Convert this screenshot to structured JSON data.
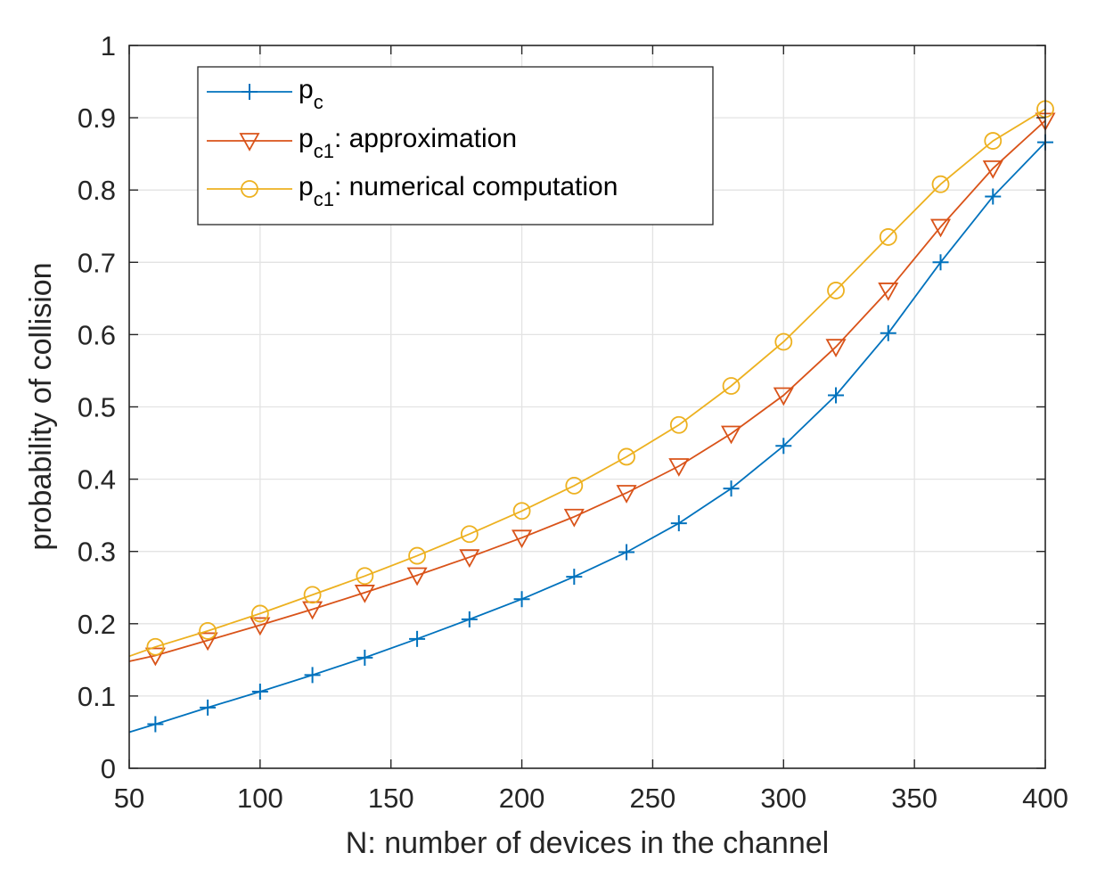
{
  "chart_data": {
    "type": "line",
    "title": "",
    "xlabel": "N: number of devices in the channel",
    "ylabel": "probability of collision",
    "xlim": [
      50,
      400
    ],
    "ylim": [
      0,
      1
    ],
    "xticks": [
      50,
      100,
      150,
      200,
      250,
      300,
      350,
      400
    ],
    "yticks": [
      0,
      0.1,
      0.2,
      0.3,
      0.4,
      0.5,
      0.6,
      0.7,
      0.8,
      0.9,
      1
    ],
    "xtick_labels": [
      "50",
      "100",
      "150",
      "200",
      "250",
      "300",
      "350",
      "400"
    ],
    "ytick_labels": [
      "0",
      "0.1",
      "0.2",
      "0.3",
      "0.4",
      "0.5",
      "0.6",
      "0.7",
      "0.8",
      "0.9",
      "1"
    ],
    "grid": true,
    "legend_position": "top-left",
    "series": [
      {
        "name": "p_c",
        "legend": {
          "main": "p",
          "sub": "c",
          "suffix": ""
        },
        "color": "#0072BD",
        "marker": "plus",
        "line": [
          [
            50,
            0.05
          ],
          [
            60,
            0.061
          ],
          [
            80,
            0.084
          ],
          [
            100,
            0.106
          ],
          [
            120,
            0.129
          ],
          [
            140,
            0.153
          ],
          [
            160,
            0.179
          ],
          [
            180,
            0.206
          ],
          [
            200,
            0.234
          ],
          [
            220,
            0.265
          ],
          [
            240,
            0.299
          ],
          [
            260,
            0.339
          ],
          [
            280,
            0.387
          ],
          [
            300,
            0.446
          ],
          [
            320,
            0.516
          ],
          [
            340,
            0.602
          ],
          [
            360,
            0.7
          ],
          [
            380,
            0.791
          ],
          [
            400,
            0.866
          ]
        ],
        "x": [
          60,
          80,
          100,
          120,
          140,
          160,
          180,
          200,
          220,
          240,
          260,
          280,
          300,
          320,
          340,
          360,
          380,
          400
        ],
        "y": [
          0.061,
          0.084,
          0.106,
          0.129,
          0.153,
          0.179,
          0.206,
          0.234,
          0.265,
          0.299,
          0.339,
          0.387,
          0.446,
          0.516,
          0.602,
          0.7,
          0.791,
          0.866
        ]
      },
      {
        "name": "p_c1: approximation",
        "legend": {
          "main": "p",
          "sub": "c1",
          "suffix": ": approximation"
        },
        "color": "#D95319",
        "marker": "triangle-down",
        "line": [
          [
            50,
            0.148
          ],
          [
            60,
            0.156
          ],
          [
            80,
            0.177
          ],
          [
            100,
            0.198
          ],
          [
            120,
            0.22
          ],
          [
            140,
            0.243
          ],
          [
            160,
            0.267
          ],
          [
            180,
            0.292
          ],
          [
            200,
            0.319
          ],
          [
            220,
            0.348
          ],
          [
            240,
            0.381
          ],
          [
            260,
            0.418
          ],
          [
            280,
            0.463
          ],
          [
            300,
            0.516
          ],
          [
            320,
            0.583
          ],
          [
            340,
            0.661
          ],
          [
            360,
            0.749
          ],
          [
            380,
            0.83
          ],
          [
            400,
            0.896
          ]
        ],
        "x": [
          60,
          80,
          100,
          120,
          140,
          160,
          180,
          200,
          220,
          240,
          260,
          280,
          300,
          320,
          340,
          360,
          380,
          400
        ],
        "y": [
          0.156,
          0.177,
          0.198,
          0.22,
          0.243,
          0.267,
          0.292,
          0.319,
          0.348,
          0.381,
          0.418,
          0.463,
          0.516,
          0.583,
          0.661,
          0.749,
          0.83,
          0.896
        ]
      },
      {
        "name": "p_c1: numerical computation",
        "legend": {
          "main": "p",
          "sub": "c1",
          "suffix": ": numerical computation"
        },
        "color": "#EDB120",
        "marker": "circle",
        "line": [
          [
            50,
            0.155
          ],
          [
            60,
            0.168
          ],
          [
            80,
            0.19
          ],
          [
            100,
            0.214
          ],
          [
            120,
            0.24
          ],
          [
            140,
            0.266
          ],
          [
            160,
            0.294
          ],
          [
            180,
            0.324
          ],
          [
            200,
            0.356
          ],
          [
            220,
            0.391
          ],
          [
            240,
            0.431
          ],
          [
            260,
            0.475
          ],
          [
            280,
            0.529
          ],
          [
            300,
            0.59
          ],
          [
            320,
            0.661
          ],
          [
            340,
            0.735
          ],
          [
            360,
            0.808
          ],
          [
            380,
            0.868
          ],
          [
            400,
            0.912
          ]
        ],
        "x": [
          60,
          80,
          100,
          120,
          140,
          160,
          180,
          200,
          220,
          240,
          260,
          280,
          300,
          320,
          340,
          360,
          380,
          400
        ],
        "y": [
          0.168,
          0.19,
          0.214,
          0.24,
          0.266,
          0.294,
          0.324,
          0.356,
          0.391,
          0.431,
          0.475,
          0.529,
          0.59,
          0.661,
          0.735,
          0.808,
          0.868,
          0.912
        ]
      }
    ]
  }
}
